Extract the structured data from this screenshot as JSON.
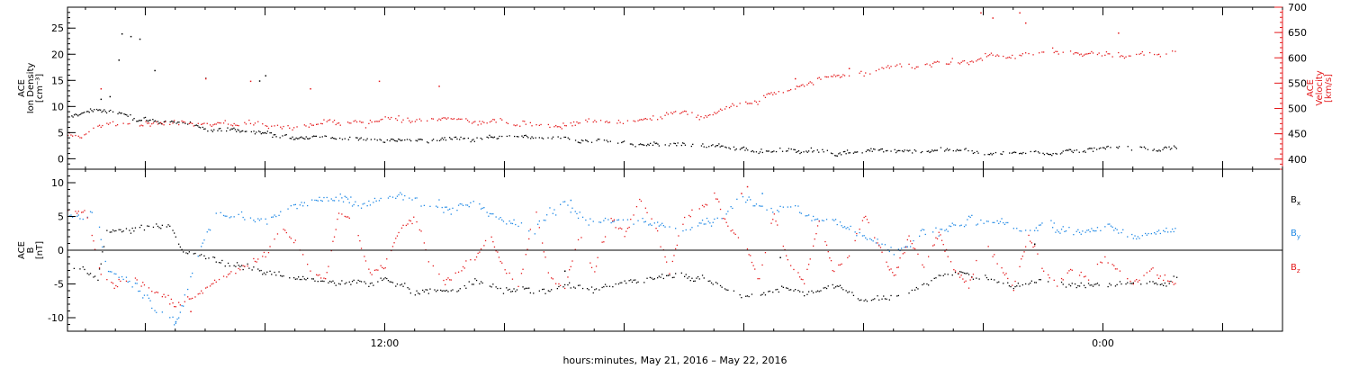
{
  "chart_data": [
    {
      "type": "scatter",
      "panel": "top",
      "left_axis": {
        "label_lines": [
          "ACE",
          "Ion Density",
          "[cm⁻³]"
        ],
        "ylim": [
          -2,
          29
        ],
        "ticks": [
          0,
          5,
          10,
          15,
          20,
          25
        ],
        "minor_step": 1,
        "color": "#000000"
      },
      "right_axis": {
        "label_lines": [
          "ACE",
          "Velocity",
          "[km/s]"
        ],
        "ylim": [
          380,
          700
        ],
        "ticks": [
          400,
          450,
          500,
          550,
          600,
          650,
          700
        ],
        "minor_step": 10,
        "color": "#e41a1c"
      },
      "series": [
        {
          "key": "density",
          "axis": "left",
          "color": "#000000",
          "knots": [
            [
              -10.6,
              8
            ],
            [
              -9.6,
              9.5
            ],
            [
              -9,
              9
            ],
            [
              -8.2,
              8
            ],
            [
              -7,
              7
            ],
            [
              -6,
              6
            ],
            [
              -4.5,
              5
            ],
            [
              -3,
              4.5
            ],
            [
              -1,
              4
            ],
            [
              1,
              3.5
            ],
            [
              3,
              3.5
            ],
            [
              5,
              3.8
            ],
            [
              7,
              3.2
            ],
            [
              9,
              3
            ],
            [
              10.5,
              2.5
            ],
            [
              12,
              2
            ],
            [
              14,
              1.5
            ],
            [
              15,
              1.3
            ],
            [
              16,
              1.8
            ],
            [
              17,
              1.7
            ],
            [
              18,
              1.5
            ],
            [
              19,
              1.6
            ],
            [
              20,
              1.3
            ],
            [
              21,
              1.2
            ],
            [
              23,
              1.5
            ],
            [
              25,
              1.8
            ],
            [
              26.5,
              2
            ]
          ],
          "spread": 1.2,
          "noise": 0.5,
          "step_min": 2.5,
          "spikes": [
            [
              -8.8,
              24
            ],
            [
              -8.5,
              23.5
            ],
            [
              -8.2,
              23
            ],
            [
              -8.9,
              19
            ],
            [
              -7.7,
              17
            ],
            [
              -6,
              15.5
            ],
            [
              -4,
              16
            ],
            [
              -4.2,
              15
            ],
            [
              -9.2,
              12
            ],
            [
              -9.5,
              11.5
            ]
          ]
        },
        {
          "key": "velocity",
          "axis": "right",
          "color": "#e41a1c",
          "knots": [
            [
              -10.6,
              450
            ],
            [
              -8,
              480
            ],
            [
              -6,
              475
            ],
            [
              -4,
              470
            ],
            [
              -3,
              460
            ],
            [
              -1,
              470
            ],
            [
              1,
              480
            ],
            [
              3,
              475
            ],
            [
              5,
              470
            ],
            [
              7,
              475
            ],
            [
              8,
              470
            ],
            [
              9,
              480
            ],
            [
              10,
              490
            ],
            [
              11,
              490
            ],
            [
              12,
              505
            ],
            [
              13,
              530
            ],
            [
              14,
              550
            ],
            [
              15,
              560
            ],
            [
              16,
              570
            ],
            [
              17,
              590
            ],
            [
              18,
              585
            ],
            [
              19,
              595
            ],
            [
              20,
              600
            ],
            [
              21,
              610
            ],
            [
              22,
              615
            ],
            [
              24,
              605
            ],
            [
              26.5,
              610
            ]
          ],
          "spread": 18,
          "noise": 7,
          "step_min": 3,
          "spikes": [
            [
              -9.5,
              540
            ],
            [
              -6,
              560
            ],
            [
              -4.5,
              555
            ],
            [
              -2.5,
              540
            ],
            [
              -0.2,
              555
            ],
            [
              1.8,
              545
            ],
            [
              19.9,
              690
            ],
            [
              20.3,
              680
            ],
            [
              21.4,
              670
            ],
            [
              21.2,
              690
            ],
            [
              15.5,
              580
            ],
            [
              13.7,
              560
            ],
            [
              24.5,
              650
            ]
          ]
        }
      ],
      "xlim": [
        -10.6,
        30
      ]
    },
    {
      "type": "scatter",
      "panel": "bottom",
      "left_axis": {
        "label_lines": [
          "ACE",
          "B",
          "[nT]"
        ],
        "ylim": [
          -12,
          12
        ],
        "ticks": [
          -10,
          -5,
          0,
          5,
          10
        ],
        "minor_step": 1,
        "color": "#000000"
      },
      "zero_line": true,
      "series": [
        {
          "key": "bx",
          "name": "Bx",
          "name_base": "B",
          "name_sub": "x",
          "color": "#000000",
          "knots": [
            [
              -10.6,
              -2
            ],
            [
              -10,
              -3
            ],
            [
              -9.6,
              -4
            ],
            [
              -9.3,
              3
            ],
            [
              -8,
              3
            ],
            [
              -7.2,
              4
            ],
            [
              -6.8,
              0
            ],
            [
              -6,
              -1
            ],
            [
              -5,
              -2
            ],
            [
              -4,
              -3
            ],
            [
              -3,
              -4
            ],
            [
              -2,
              -5
            ],
            [
              -1,
              -5
            ],
            [
              0,
              -4
            ],
            [
              1,
              -6
            ],
            [
              2,
              -6
            ],
            [
              3,
              -5
            ],
            [
              4,
              -6
            ],
            [
              5,
              -6
            ],
            [
              6,
              -5
            ],
            [
              7,
              -6
            ],
            [
              8,
              -5
            ],
            [
              9,
              -4
            ],
            [
              10,
              -3
            ],
            [
              11,
              -5
            ],
            [
              12,
              -7
            ],
            [
              13,
              -6
            ],
            [
              14,
              -6
            ],
            [
              15,
              -5
            ],
            [
              16,
              -7
            ],
            [
              17,
              -7
            ],
            [
              18,
              -5
            ],
            [
              19,
              -3
            ],
            [
              20,
              -4
            ],
            [
              21,
              -5
            ],
            [
              22,
              -4
            ],
            [
              23,
              -5
            ],
            [
              24,
              -5
            ],
            [
              25,
              -5
            ],
            [
              26.5,
              -4
            ]
          ],
          "spread": 1.4,
          "noise": 0.6,
          "step_min": 3,
          "spikes": [
            [
              21.7,
              1
            ],
            [
              13.2,
              -1
            ],
            [
              6,
              -3
            ]
          ]
        },
        {
          "key": "by",
          "name": "By",
          "name_base": "B",
          "name_sub": "y",
          "color": "#1e88e5",
          "knots": [
            [
              -10.6,
              5
            ],
            [
              -10,
              4
            ],
            [
              -9.7,
              7
            ],
            [
              -9.3,
              -3
            ],
            [
              -8.5,
              -5
            ],
            [
              -8,
              -6
            ],
            [
              -7.5,
              -8
            ],
            [
              -7,
              -10
            ],
            [
              -6.5,
              -4
            ],
            [
              -6,
              3
            ],
            [
              -5.5,
              6
            ],
            [
              -5,
              5
            ],
            [
              -4,
              4
            ],
            [
              -3,
              7
            ],
            [
              -2,
              8
            ],
            [
              -1,
              7
            ],
            [
              0,
              8
            ],
            [
              1,
              7
            ],
            [
              2,
              6
            ],
            [
              3,
              7
            ],
            [
              4,
              4
            ],
            [
              5,
              3
            ],
            [
              6,
              8
            ],
            [
              7,
              4
            ],
            [
              8,
              5
            ],
            [
              9,
              4
            ],
            [
              10,
              2
            ],
            [
              11,
              5
            ],
            [
              12,
              7
            ],
            [
              13,
              6
            ],
            [
              14,
              6
            ],
            [
              15,
              4
            ],
            [
              16,
              2
            ],
            [
              17,
              1
            ],
            [
              18,
              3
            ],
            [
              19,
              4
            ],
            [
              20,
              5
            ],
            [
              21,
              3
            ],
            [
              22,
              4
            ],
            [
              23,
              3
            ],
            [
              24,
              3
            ],
            [
              25,
              2
            ],
            [
              26.5,
              4
            ]
          ],
          "spread": 2.2,
          "noise": 0.8,
          "step_min": 3,
          "spikes": [
            [
              12.6,
              8.5
            ],
            [
              6.2,
              7.5
            ],
            [
              -7,
              -10.5
            ]
          ]
        },
        {
          "key": "bz",
          "name": "Bz",
          "name_base": "B",
          "name_sub": "z",
          "color": "#e41a1c",
          "knots": [
            [
              -10.6,
              6
            ],
            [
              -10,
              6
            ],
            [
              -9.5,
              -3
            ],
            [
              -9,
              -5
            ],
            [
              -8.5,
              -4
            ],
            [
              -8,
              -6
            ],
            [
              -7.5,
              -7
            ],
            [
              -7,
              -8
            ],
            [
              -6.5,
              -7
            ],
            [
              -6,
              -6
            ],
            [
              -5.5,
              -4
            ],
            [
              -5,
              -3
            ],
            [
              -4.5,
              -2
            ],
            [
              -4,
              -1
            ],
            [
              -3.5,
              3
            ],
            [
              -3,
              1
            ],
            [
              -2.5,
              -3
            ],
            [
              -2,
              -5
            ],
            [
              -1.5,
              6
            ],
            [
              -1,
              3
            ],
            [
              -0.5,
              -4
            ],
            [
              0,
              -2
            ],
            [
              0.5,
              3
            ],
            [
              1,
              5
            ],
            [
              1.5,
              -2
            ],
            [
              2,
              -5
            ],
            [
              2.5,
              -3
            ],
            [
              3,
              -1
            ],
            [
              3.5,
              2
            ],
            [
              4,
              -3
            ],
            [
              4.5,
              -5
            ],
            [
              5,
              6
            ],
            [
              5.5,
              -4
            ],
            [
              6,
              -5
            ],
            [
              6.5,
              3
            ],
            [
              7,
              -3
            ],
            [
              7.5,
              5
            ],
            [
              8,
              2
            ],
            [
              8.5,
              7
            ],
            [
              9,
              4
            ],
            [
              9.5,
              -3
            ],
            [
              10,
              5
            ],
            [
              10.5,
              7
            ],
            [
              11,
              8
            ],
            [
              11.5,
              3
            ],
            [
              12,
              1
            ],
            [
              12.5,
              -4
            ],
            [
              13,
              6
            ],
            [
              13.5,
              -2
            ],
            [
              14,
              -5
            ],
            [
              14.5,
              5
            ],
            [
              15,
              -3
            ],
            [
              15.5,
              -1
            ],
            [
              16,
              5
            ],
            [
              16.5,
              1
            ],
            [
              17,
              -4
            ],
            [
              17.5,
              2
            ],
            [
              18,
              -2
            ],
            [
              18.5,
              3
            ],
            [
              19,
              -3
            ],
            [
              19.5,
              -5
            ],
            [
              20,
              2
            ],
            [
              20.5,
              -2
            ],
            [
              21,
              -5
            ],
            [
              21.5,
              3
            ],
            [
              22,
              -3
            ],
            [
              22.5,
              -5
            ],
            [
              23,
              -2
            ],
            [
              23.5,
              -4
            ],
            [
              24,
              -1
            ],
            [
              24.5,
              -3
            ],
            [
              25,
              -5
            ],
            [
              25.5,
              -3
            ],
            [
              26.5,
              -4
            ]
          ],
          "spread": 1.5,
          "noise": 0.7,
          "step_min": 3,
          "spikes": [
            [
              12.1,
              9.5
            ],
            [
              11.9,
              8.5
            ],
            [
              -6.5,
              -9
            ]
          ]
        }
      ],
      "xlim": [
        -10.6,
        30
      ]
    }
  ],
  "x_axis": {
    "ticks_hours": [
      -8,
      -4,
      0,
      4,
      8,
      12,
      16,
      20,
      24,
      28
    ],
    "labels": [
      {
        "hour": 0,
        "text": "12:00"
      },
      {
        "hour": 24,
        "text": "0:00"
      }
    ],
    "title": "hours:minutes, May 21, 2016 – May 22, 2016"
  }
}
